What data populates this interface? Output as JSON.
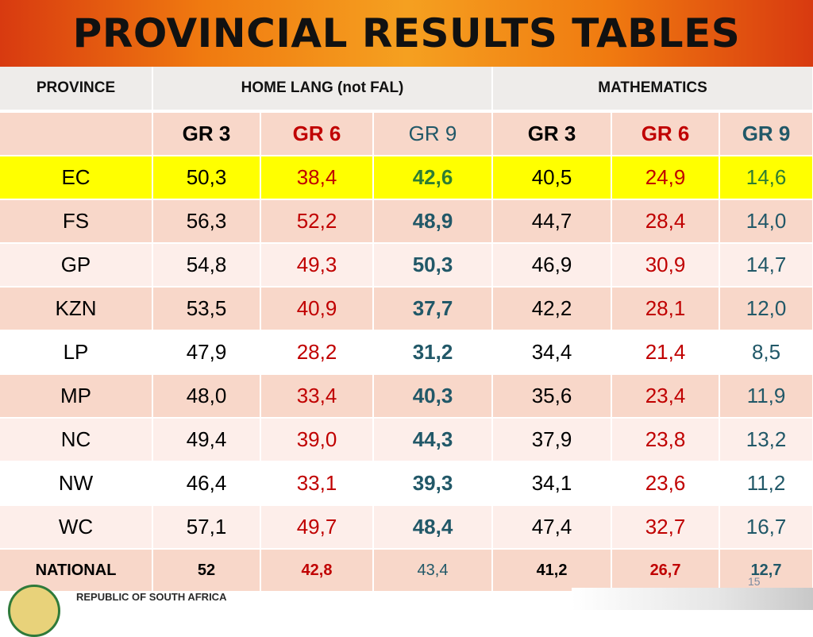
{
  "title": "PROVINCIAL RESULTS TABLES",
  "headers": {
    "province": "PROVINCE",
    "home_lang": "HOME LANG (not FAL)",
    "mathematics": "MATHEMATICS"
  },
  "grades": [
    "GR 3",
    "GR 6",
    "GR 9",
    "GR 3",
    "GR 6",
    "GR 9"
  ],
  "rows": [
    {
      "province": "EC",
      "hl": [
        "50,3",
        "38,4",
        "42,6"
      ],
      "math": [
        "40,5",
        "24,9",
        "14,6"
      ]
    },
    {
      "province": "FS",
      "hl": [
        "56,3",
        "52,2",
        "48,9"
      ],
      "math": [
        "44,7",
        "28,4",
        "14,0"
      ]
    },
    {
      "province": "GP",
      "hl": [
        "54,8",
        "49,3",
        "50,3"
      ],
      "math": [
        "46,9",
        "30,9",
        "14,7"
      ]
    },
    {
      "province": "KZN",
      "hl": [
        "53,5",
        "40,9",
        "37,7"
      ],
      "math": [
        "42,2",
        "28,1",
        "12,0"
      ]
    },
    {
      "province": "LP",
      "hl": [
        "47,9",
        "28,2",
        "31,2"
      ],
      "math": [
        "34,4",
        "21,4",
        "8,5"
      ]
    },
    {
      "province": "MP",
      "hl": [
        "48,0",
        "33,4",
        "40,3"
      ],
      "math": [
        "35,6",
        "23,4",
        "11,9"
      ]
    },
    {
      "province": "NC",
      "hl": [
        "49,4",
        "39,0",
        "44,3"
      ],
      "math": [
        "37,9",
        "23,8",
        "13,2"
      ]
    },
    {
      "province": "NW",
      "hl": [
        "46,4",
        "33,1",
        "39,3"
      ],
      "math": [
        "34,1",
        "23,6",
        "11,2"
      ]
    },
    {
      "province": "WC",
      "hl": [
        "57,1",
        "49,7",
        "48,4"
      ],
      "math": [
        "47,4",
        "32,7",
        "16,7"
      ]
    }
  ],
  "national": {
    "province": "NATIONAL",
    "hl": [
      "52",
      "42,8",
      "43,4"
    ],
    "math": [
      "41,2",
      "26,7",
      "12,7"
    ]
  },
  "footer": {
    "org": "REPUBLIC OF SOUTH AFRICA",
    "page": "15"
  },
  "colors": {
    "highlight_row": "#ffff00",
    "gr6": "#c00000",
    "gr9": "#215868",
    "ec_gr9": "#2e7d32"
  }
}
